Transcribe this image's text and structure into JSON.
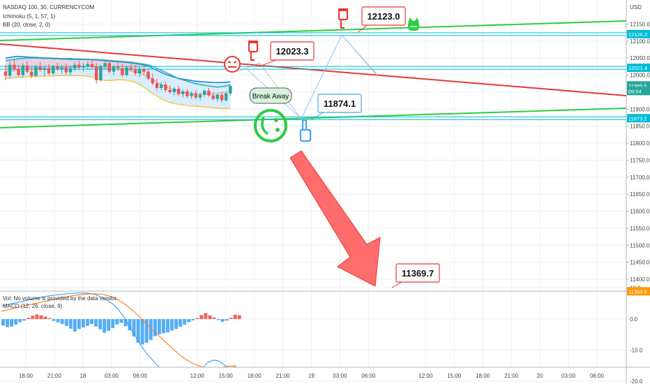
{
  "legend": {
    "title": "NASDAQ 100, 30, CURRENCYCOM",
    "ichimoku": "Ichimoku (5, 1, 57, 1)",
    "bb": "BB (20, close, 2, 0)",
    "vol": "Vol: No volume is provided by the data vendor.",
    "macd": "MACD (12, 26, close, 9)"
  },
  "currency": "USD",
  "chart_data": {
    "type": "candlestick",
    "price_axis": {
      "min": 11350,
      "max": 12200,
      "step": 50,
      "ticks": [
        "12150.0",
        "12100.0",
        "12050.0",
        "12000.0",
        "11950.0",
        "11900.0",
        "11850.0",
        "11800.0",
        "11750.0",
        "11700.0",
        "11650.0",
        "11600.0",
        "11550.0",
        "11500.0",
        "11450.0",
        "11400.0"
      ]
    },
    "time_axis": {
      "labels": [
        "18:00",
        "21:00",
        "18",
        "03:00",
        "06:00",
        "12:00",
        "15:00",
        "18:00",
        "21:00",
        "19",
        "03:00",
        "06:00",
        "12:00",
        "15:00",
        "18:00",
        "21:00",
        "20",
        "03:00",
        "06:00"
      ],
      "hours": [
        0,
        3,
        6,
        9,
        12,
        18,
        21,
        24,
        27,
        30,
        33,
        36,
        42,
        45,
        48,
        51,
        54,
        57,
        60
      ]
    },
    "price_tags": [
      {
        "label": "12120.2",
        "price": 12120.2,
        "color": "#00bcd4"
      },
      {
        "label": "12021.4",
        "price": 12021.4,
        "color": "#00bcd4"
      },
      {
        "label": "11969.5",
        "price": 11969.5,
        "color": "#26a69a"
      },
      {
        "label": "06:54",
        "price": 11953,
        "color": "#26a69a"
      },
      {
        "label": "11873.2",
        "price": 11873.2,
        "color": "#00bcd4"
      },
      {
        "label": "11364.6",
        "price": 11364.6,
        "color": "#ff9800"
      }
    ],
    "callouts": [
      {
        "label": "12123.0",
        "price": 12123.0
      },
      {
        "label": "12023.3",
        "price": 12023.3
      },
      {
        "label": "11874.1",
        "price": 11874.1
      },
      {
        "label": "11369.7",
        "price": 11369.7
      }
    ],
    "annotation": "Break Away",
    "macd_axis": {
      "ticks": [
        "10.0",
        "0.0",
        "-10.0",
        "-20.0"
      ],
      "values": [
        10,
        0,
        -10,
        -20
      ]
    },
    "candles": [
      {
        "o": 12010,
        "h": 12030,
        "l": 11985,
        "c": 11998
      },
      {
        "o": 11998,
        "h": 12040,
        "l": 11990,
        "c": 12030
      },
      {
        "o": 12030,
        "h": 12045,
        "l": 12010,
        "c": 12018
      },
      {
        "o": 12018,
        "h": 12030,
        "l": 11995,
        "c": 12000
      },
      {
        "o": 12000,
        "h": 12035,
        "l": 11992,
        "c": 12028
      },
      {
        "o": 12028,
        "h": 12040,
        "l": 12005,
        "c": 12010
      },
      {
        "o": 12010,
        "h": 12025,
        "l": 11990,
        "c": 11998
      },
      {
        "o": 11998,
        "h": 12030,
        "l": 11995,
        "c": 12024
      },
      {
        "o": 12024,
        "h": 12038,
        "l": 12010,
        "c": 12015
      },
      {
        "o": 12015,
        "h": 12028,
        "l": 11998,
        "c": 12020
      },
      {
        "o": 12020,
        "h": 12032,
        "l": 12000,
        "c": 12005
      },
      {
        "o": 12005,
        "h": 12030,
        "l": 12000,
        "c": 12025
      },
      {
        "o": 12025,
        "h": 12036,
        "l": 12012,
        "c": 12018
      },
      {
        "o": 12018,
        "h": 12030,
        "l": 12004,
        "c": 12022
      },
      {
        "o": 12022,
        "h": 12034,
        "l": 12000,
        "c": 12008
      },
      {
        "o": 12008,
        "h": 12028,
        "l": 11998,
        "c": 12020
      },
      {
        "o": 12020,
        "h": 12040,
        "l": 12012,
        "c": 12030
      },
      {
        "o": 12030,
        "h": 12042,
        "l": 12015,
        "c": 12022
      },
      {
        "o": 12022,
        "h": 12035,
        "l": 12010,
        "c": 12026
      },
      {
        "o": 12026,
        "h": 12040,
        "l": 12016,
        "c": 12032
      },
      {
        "o": 12032,
        "h": 12045,
        "l": 12018,
        "c": 12024
      },
      {
        "o": 12024,
        "h": 12035,
        "l": 11975,
        "c": 11985
      },
      {
        "o": 11985,
        "h": 12030,
        "l": 11980,
        "c": 12025
      },
      {
        "o": 12025,
        "h": 12040,
        "l": 12020,
        "c": 12035
      },
      {
        "o": 12035,
        "h": 12042,
        "l": 12005,
        "c": 12010
      },
      {
        "o": 12010,
        "h": 12030,
        "l": 12000,
        "c": 12024
      },
      {
        "o": 12024,
        "h": 12036,
        "l": 12012,
        "c": 12020
      },
      {
        "o": 12020,
        "h": 12032,
        "l": 11995,
        "c": 12000
      },
      {
        "o": 12000,
        "h": 12028,
        "l": 11996,
        "c": 12022
      },
      {
        "o": 12022,
        "h": 12034,
        "l": 12010,
        "c": 12016
      },
      {
        "o": 12016,
        "h": 12030,
        "l": 11998,
        "c": 12005
      },
      {
        "o": 12005,
        "h": 12025,
        "l": 11995,
        "c": 12018
      },
      {
        "o": 12018,
        "h": 12030,
        "l": 12000,
        "c": 12010
      },
      {
        "o": 12010,
        "h": 12020,
        "l": 11985,
        "c": 11990
      },
      {
        "o": 11990,
        "h": 12005,
        "l": 11970,
        "c": 11976
      },
      {
        "o": 11976,
        "h": 11990,
        "l": 11955,
        "c": 11962
      },
      {
        "o": 11962,
        "h": 11980,
        "l": 11955,
        "c": 11972
      },
      {
        "o": 11972,
        "h": 11982,
        "l": 11950,
        "c": 11956
      },
      {
        "o": 11956,
        "h": 11970,
        "l": 11945,
        "c": 11950
      },
      {
        "o": 11950,
        "h": 11965,
        "l": 11940,
        "c": 11960
      },
      {
        "o": 11960,
        "h": 11968,
        "l": 11938,
        "c": 11944
      },
      {
        "o": 11944,
        "h": 11958,
        "l": 11935,
        "c": 11952
      },
      {
        "o": 11952,
        "h": 11960,
        "l": 11932,
        "c": 11938
      },
      {
        "o": 11938,
        "h": 11952,
        "l": 11930,
        "c": 11946
      },
      {
        "o": 11946,
        "h": 11956,
        "l": 11928,
        "c": 11934
      },
      {
        "o": 11934,
        "h": 11948,
        "l": 11926,
        "c": 11942
      },
      {
        "o": 11942,
        "h": 11958,
        "l": 11935,
        "c": 11954
      },
      {
        "o": 11954,
        "h": 11962,
        "l": 11936,
        "c": 11940
      },
      {
        "o": 11940,
        "h": 11950,
        "l": 11925,
        "c": 11930
      },
      {
        "o": 11930,
        "h": 11946,
        "l": 11922,
        "c": 11942
      },
      {
        "o": 11942,
        "h": 11950,
        "l": 11920,
        "c": 11926
      },
      {
        "o": 11926,
        "h": 11950,
        "l": 11922,
        "c": 11946
      },
      {
        "o": 11946,
        "h": 11972,
        "l": 11940,
        "c": 11968
      }
    ],
    "ma_blue": [
      12050,
      12052,
      12054,
      12055,
      12054,
      12053,
      12052,
      12052,
      12051,
      12050,
      12050,
      12049,
      12049,
      12048,
      12048,
      12048,
      12047,
      12047,
      12046,
      12046,
      12045,
      12044,
      12043,
      12042,
      12041,
      12040,
      12039,
      12038,
      12037,
      12036,
      12034,
      12032,
      12030,
      12026,
      12020,
      12014,
      12008,
      12002,
      11998,
      11994,
      11990,
      11988,
      11986,
      11984,
      11982,
      11981,
      11980,
      11979,
      11978,
      11978,
      11978,
      11979,
      11980
    ],
    "ma_red": [
      12010,
      12012,
      12014,
      12016,
      12017,
      12018,
      12018,
      12019,
      12020,
      12020,
      12021,
      12021,
      12022,
      12022,
      12022,
      12023,
      12023,
      12024,
      12024,
      12024,
      12024,
      12022,
      12021,
      12020,
      12019,
      12018,
      12017,
      12016,
      12015,
      12013,
      12010,
      12006,
      12000,
      11995,
      11988,
      11980,
      11972,
      11965,
      11960,
      11956,
      11953,
      11950,
      11948,
      11946,
      11945,
      11944,
      11944,
      11944,
      11945,
      11946,
      11948,
      11950,
      11954
    ],
    "bb_upper": [
      12042,
      12044,
      12046,
      12048,
      12049,
      12050,
      12050,
      12050,
      12050,
      12049,
      12049,
      12048,
      12048,
      12047,
      12047,
      12046,
      12046,
      12046,
      12046,
      12046,
      12046,
      12046,
      12045,
      12044,
      12043,
      12042,
      12041,
      12040,
      12039,
      12038,
      12036,
      12034,
      12032,
      12030,
      12026,
      12020,
      12014,
      12008,
      12002,
      11996,
      11990,
      11986,
      11982,
      11978,
      11975,
      11972,
      11970,
      11968,
      11966,
      11965,
      11966,
      11968,
      11972
    ],
    "bb_lower": [
      11990,
      11991,
      11992,
      11993,
      11994,
      11995,
      11996,
      11996,
      11996,
      11997,
      11997,
      11997,
      11998,
      11998,
      11998,
      11998,
      11998,
      11998,
      11998,
      11996,
      11994,
      11990,
      11986,
      11984,
      11984,
      11985,
      11986,
      11986,
      11985,
      11982,
      11978,
      11972,
      11964,
      11955,
      11946,
      11938,
      11930,
      11924,
      11920,
      11916,
      11914,
      11912,
      11910,
      11909,
      11908,
      11907,
      11906,
      11905,
      11904,
      11903,
      11902,
      11902,
      11903
    ],
    "macd_hist": [
      -2.1,
      -2.6,
      -2.4,
      -1.8,
      -1.0,
      -0.5,
      0.4,
      1.1,
      1.5,
      1.2,
      0.8,
      0.3,
      -0.6,
      -1.1,
      -1.6,
      -2.2,
      -3.1,
      -4.0,
      -3.2,
      -2.7,
      -2.2,
      -1.6,
      -2.4,
      -3.3,
      -4.4,
      -3.8,
      -2.9,
      -1.7,
      -1.2,
      -2.3,
      -3.6,
      -5.6,
      -7.6,
      -8.2,
      -7.6,
      -6.7,
      -5.5,
      -4.9,
      -4.6,
      -4.3,
      -3.7,
      -3.2,
      -2.5,
      -1.8,
      -1.0,
      -0.4,
      0.3,
      1.3,
      1.9,
      1.2,
      0.5,
      -0.3,
      -0.9,
      -0.5,
      0.4,
      1.4,
      1.2
    ],
    "macd_line": [
      4.2,
      4.6,
      5.0,
      5.4,
      5.8,
      6.2,
      6.6,
      7.0,
      7.3,
      7.6,
      7.8,
      8.0,
      8.2,
      8.3,
      8.4,
      8.4,
      8.2,
      7.8,
      7.0,
      6.0,
      4.8,
      3.0,
      0.5,
      -2.5,
      -5.5,
      -8.5,
      -11.0,
      -13.0,
      -15.0,
      -16.5,
      -17.8,
      -18.6,
      -19.0,
      -19.2,
      -18.8,
      -17.6,
      -15.8,
      -14.0,
      -13.2,
      -13.5,
      -14.8,
      -15.8,
      -15.2
    ],
    "signal_line": [
      2.5,
      2.9,
      3.3,
      3.8,
      4.2,
      4.6,
      5.0,
      5.4,
      5.8,
      6.2,
      6.6,
      7.0,
      7.3,
      7.6,
      7.8,
      8.0,
      8.1,
      8.1,
      8.0,
      7.6,
      7.0,
      6.1,
      5.0,
      3.6,
      2.0,
      0.3,
      -1.5,
      -3.3,
      -5.0,
      -6.7,
      -8.4,
      -10.0,
      -11.6,
      -12.9,
      -14.0,
      -14.8,
      -15.4,
      -15.7,
      -15.7,
      -15.6,
      -15.4,
      -15.2,
      -15.0
    ]
  }
}
